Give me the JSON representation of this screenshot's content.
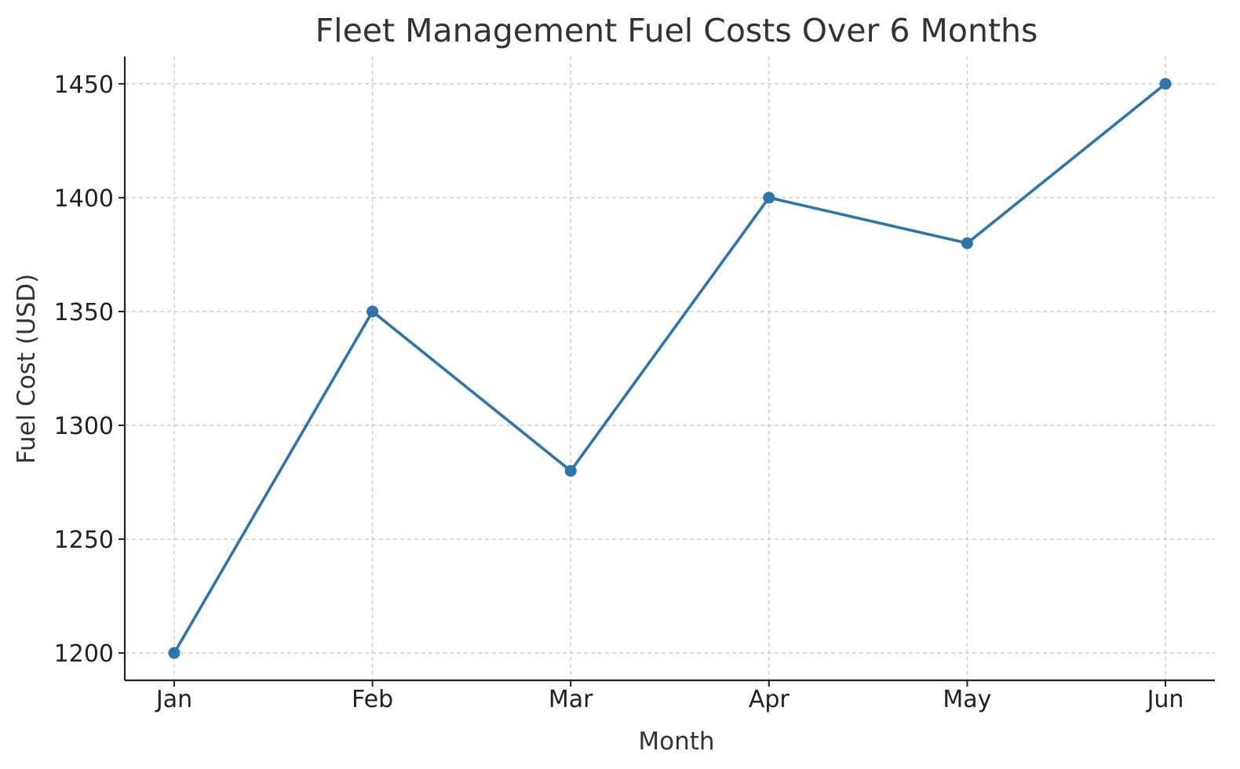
{
  "chart_data": {
    "type": "line",
    "title": "Fleet Management Fuel Costs Over 6 Months",
    "xlabel": "Month",
    "ylabel": "Fuel Cost (USD)",
    "categories": [
      "Jan",
      "Feb",
      "Mar",
      "Apr",
      "May",
      "Jun"
    ],
    "series": [
      {
        "values": [
          1200,
          1350,
          1280,
          1400,
          1380,
          1450
        ],
        "color": "#2e75ac"
      }
    ],
    "ylim": [
      1188,
      1462
    ],
    "yticks": [
      1200,
      1250,
      1300,
      1350,
      1400,
      1450
    ],
    "grid": true,
    "marker": "circle"
  }
}
